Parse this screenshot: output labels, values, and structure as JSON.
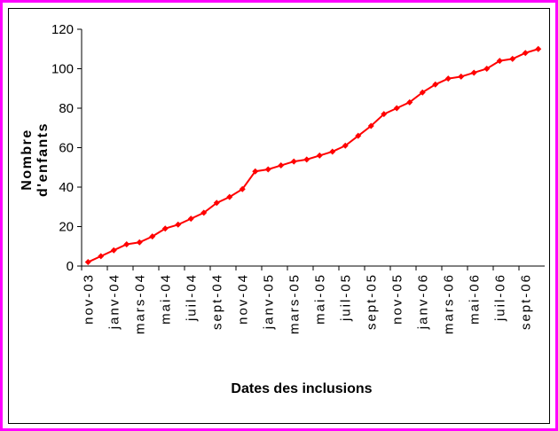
{
  "chart_data": {
    "type": "line",
    "ylabel": [
      "Nombre",
      "d'enfants"
    ],
    "xlabel": "Dates des inclusions",
    "categories": [
      "nov-03",
      null,
      "janv-04",
      null,
      "mars-04",
      null,
      "mai-04",
      null,
      "juil-04",
      null,
      "sept-04",
      null,
      "nov-04",
      null,
      "janv-05",
      null,
      "mars-05",
      null,
      "mai-05",
      null,
      "juil-05",
      null,
      "sept-05",
      null,
      "nov-05",
      null,
      "janv-06",
      null,
      "mars-06",
      null,
      "mai-06",
      null,
      "juil-06",
      null,
      "sept-06",
      null
    ],
    "series": [
      {
        "name": "Nombre d'enfants",
        "color": "#ff0000",
        "values": [
          2,
          5,
          8,
          11,
          12,
          15,
          19,
          21,
          24,
          27,
          32,
          35,
          39,
          48,
          49,
          51,
          53,
          54,
          56,
          58,
          61,
          66,
          71,
          77,
          80,
          83,
          88,
          92,
          95,
          96,
          98,
          100,
          104,
          105,
          108,
          110
        ]
      }
    ],
    "ylim": [
      0,
      120
    ],
    "yticks": [
      0,
      20,
      40,
      60,
      80,
      100,
      120
    ]
  }
}
